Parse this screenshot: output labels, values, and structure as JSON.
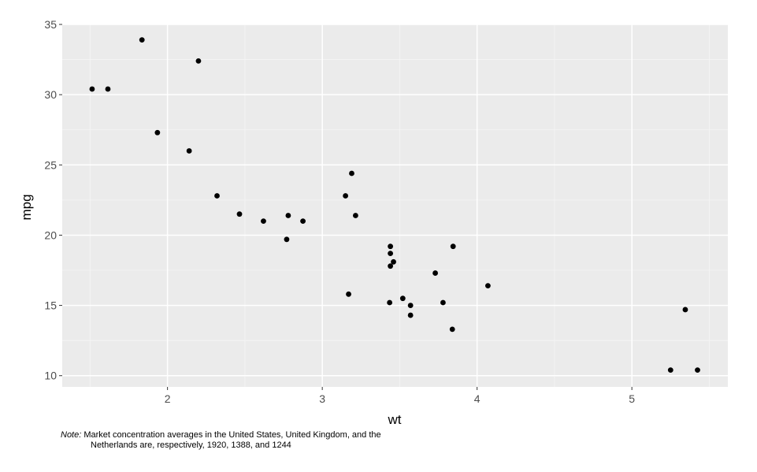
{
  "chart_data": {
    "type": "scatter",
    "xlabel": "wt",
    "ylabel": "mpg",
    "xlim": [
      1.32,
      5.62
    ],
    "ylim": [
      9.2,
      35.0
    ],
    "x_ticks": [
      2,
      3,
      4,
      5
    ],
    "y_ticks": [
      10,
      15,
      20,
      25,
      30,
      35
    ],
    "x_tick_labels": [
      "2",
      "3",
      "4",
      "5"
    ],
    "y_tick_labels": [
      "10",
      "15",
      "20",
      "25",
      "30",
      "35"
    ],
    "grid": true,
    "colors": {
      "panel": "#ebebeb",
      "grid_major": "#ffffff",
      "grid_minor": "#f5f5f5",
      "point": "#000000",
      "tick_text": "#4d4d4d"
    },
    "points": [
      {
        "x": 2.62,
        "y": 21.0
      },
      {
        "x": 2.875,
        "y": 21.0
      },
      {
        "x": 2.32,
        "y": 22.8
      },
      {
        "x": 3.215,
        "y": 21.4
      },
      {
        "x": 3.44,
        "y": 18.7
      },
      {
        "x": 3.46,
        "y": 18.1
      },
      {
        "x": 3.57,
        "y": 14.3
      },
      {
        "x": 3.19,
        "y": 24.4
      },
      {
        "x": 3.15,
        "y": 22.8
      },
      {
        "x": 3.44,
        "y": 19.2
      },
      {
        "x": 3.44,
        "y": 17.8
      },
      {
        "x": 4.07,
        "y": 16.4
      },
      {
        "x": 3.73,
        "y": 17.3
      },
      {
        "x": 3.78,
        "y": 15.2
      },
      {
        "x": 5.25,
        "y": 10.4
      },
      {
        "x": 5.424,
        "y": 10.4
      },
      {
        "x": 5.345,
        "y": 14.7
      },
      {
        "x": 2.2,
        "y": 32.4
      },
      {
        "x": 1.615,
        "y": 30.4
      },
      {
        "x": 1.835,
        "y": 33.9
      },
      {
        "x": 2.465,
        "y": 21.5
      },
      {
        "x": 3.52,
        "y": 15.5
      },
      {
        "x": 3.435,
        "y": 15.2
      },
      {
        "x": 3.84,
        "y": 13.3
      },
      {
        "x": 3.845,
        "y": 19.2
      },
      {
        "x": 1.935,
        "y": 27.3
      },
      {
        "x": 2.14,
        "y": 26.0
      },
      {
        "x": 1.513,
        "y": 30.4
      },
      {
        "x": 3.17,
        "y": 15.8
      },
      {
        "x": 2.77,
        "y": 19.7
      },
      {
        "x": 3.57,
        "y": 15.0
      },
      {
        "x": 2.78,
        "y": 21.4
      }
    ]
  },
  "note": {
    "label": "Note:",
    "line1": " Market concentration averages in the United States, United Kingdom, and the",
    "line2": "Netherlands are, respectively, 1920, 1388, and 1244"
  }
}
